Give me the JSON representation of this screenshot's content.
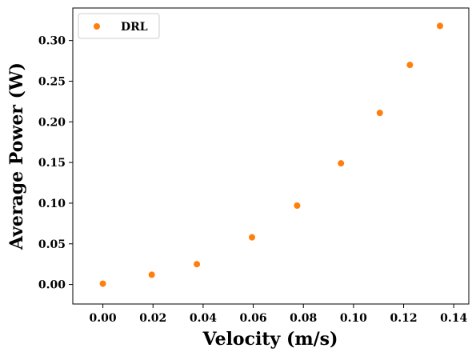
{
  "chart_data": {
    "type": "scatter",
    "xlabel": "Velocity (m/s)",
    "ylabel": "Average Power (W)",
    "xlim": [
      -0.012,
      0.146
    ],
    "ylim": [
      -0.024,
      0.34
    ],
    "xticks": [
      "0.00",
      "0.02",
      "0.04",
      "0.06",
      "0.08",
      "0.10",
      "0.12",
      "0.14"
    ],
    "yticks": [
      "0.00",
      "0.05",
      "0.10",
      "0.15",
      "0.20",
      "0.25",
      "0.30"
    ],
    "grid": false,
    "legend_position": "top-left",
    "series": [
      {
        "name": "DRL",
        "color": "#ff7f0e",
        "x": [
          0.0,
          0.0195,
          0.0375,
          0.0595,
          0.0775,
          0.095,
          0.1105,
          0.1225,
          0.1345
        ],
        "y": [
          0.001,
          0.012,
          0.025,
          0.058,
          0.097,
          0.149,
          0.211,
          0.27,
          0.318
        ]
      }
    ]
  }
}
